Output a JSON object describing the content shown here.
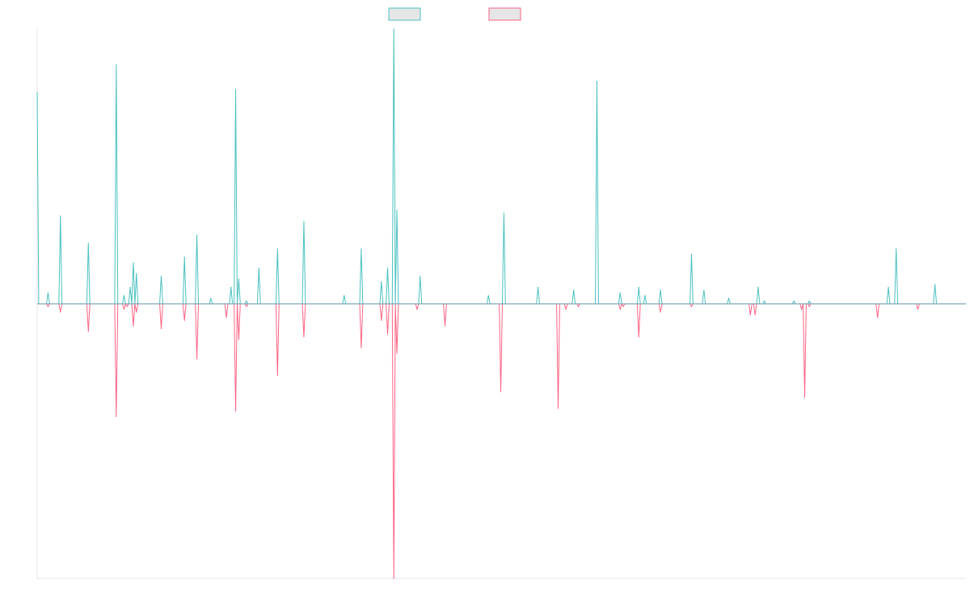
{
  "chart_data": {
    "type": "line",
    "title": "",
    "xlabel": "",
    "ylabel": "",
    "grid": false,
    "legend": {
      "placement": "top-center"
    },
    "n_points": 600,
    "ylim": [
      -1.0,
      1.0
    ],
    "baseline": 0,
    "series": [
      {
        "color": "#4bc0c0",
        "fill": "#e6e6e6",
        "direction": "positive",
        "spikes": [
          [
            0,
            0.77
          ],
          [
            7,
            0.04
          ],
          [
            15,
            0.32
          ],
          [
            28,
            0.0
          ],
          [
            33,
            0.22
          ],
          [
            51,
            0.87
          ],
          [
            56,
            0.03
          ],
          [
            60,
            0.06
          ],
          [
            62,
            0.15
          ],
          [
            64,
            0.11
          ],
          [
            80,
            0.1
          ],
          [
            95,
            0.17
          ],
          [
            103,
            0.25
          ],
          [
            112,
            0.02
          ],
          [
            125,
            0.06
          ],
          [
            128,
            0.78
          ],
          [
            130,
            0.09
          ],
          [
            135,
            0.01
          ],
          [
            143,
            0.13
          ],
          [
            155,
            0.2
          ],
          [
            172,
            0.3
          ],
          [
            198,
            0.03
          ],
          [
            209,
            0.2
          ],
          [
            222,
            0.08
          ],
          [
            226,
            0.13
          ],
          [
            230,
            1.0
          ],
          [
            232,
            0.34
          ],
          [
            247,
            0.1
          ],
          [
            291,
            0.03
          ],
          [
            301,
            0.33
          ],
          [
            323,
            0.06
          ],
          [
            346,
            0.05
          ],
          [
            361,
            0.81
          ],
          [
            376,
            0.04
          ],
          [
            388,
            0.06
          ],
          [
            392,
            0.03
          ],
          [
            402,
            0.05
          ],
          [
            422,
            0.18
          ],
          [
            430,
            0.05
          ],
          [
            446,
            0.02
          ],
          [
            465,
            0.06
          ],
          [
            469,
            0.01
          ],
          [
            488,
            0.01
          ],
          [
            498,
            0.01
          ],
          [
            549,
            0.06
          ],
          [
            554,
            0.2
          ],
          [
            579,
            0.07
          ],
          [
            609,
            0.05
          ],
          [
            637,
            0.01
          ]
        ]
      },
      {
        "color": "#ff6384",
        "fill": "#e6e6e6",
        "direction": "negative",
        "spikes": [
          [
            7,
            0.01
          ],
          [
            15,
            0.03
          ],
          [
            33,
            0.1
          ],
          [
            51,
            0.41
          ],
          [
            56,
            0.02
          ],
          [
            58,
            0.01
          ],
          [
            62,
            0.08
          ],
          [
            64,
            0.03
          ],
          [
            80,
            0.09
          ],
          [
            95,
            0.06
          ],
          [
            103,
            0.2
          ],
          [
            122,
            0.05
          ],
          [
            128,
            0.39
          ],
          [
            130,
            0.13
          ],
          [
            135,
            0.01
          ],
          [
            155,
            0.26
          ],
          [
            172,
            0.12
          ],
          [
            209,
            0.16
          ],
          [
            222,
            0.06
          ],
          [
            226,
            0.11
          ],
          [
            230,
            1.0
          ],
          [
            232,
            0.18
          ],
          [
            245,
            0.02
          ],
          [
            263,
            0.08
          ],
          [
            299,
            0.32
          ],
          [
            336,
            0.38
          ],
          [
            341,
            0.02
          ],
          [
            349,
            0.01
          ],
          [
            376,
            0.02
          ],
          [
            378,
            0.01
          ],
          [
            388,
            0.12
          ],
          [
            402,
            0.03
          ],
          [
            422,
            0.01
          ],
          [
            460,
            0.04
          ],
          [
            463,
            0.04
          ],
          [
            493,
            0.02
          ],
          [
            495,
            0.34
          ],
          [
            498,
            0.01
          ],
          [
            542,
            0.05
          ],
          [
            568,
            0.02
          ],
          [
            634,
            0.03
          ]
        ]
      }
    ]
  }
}
